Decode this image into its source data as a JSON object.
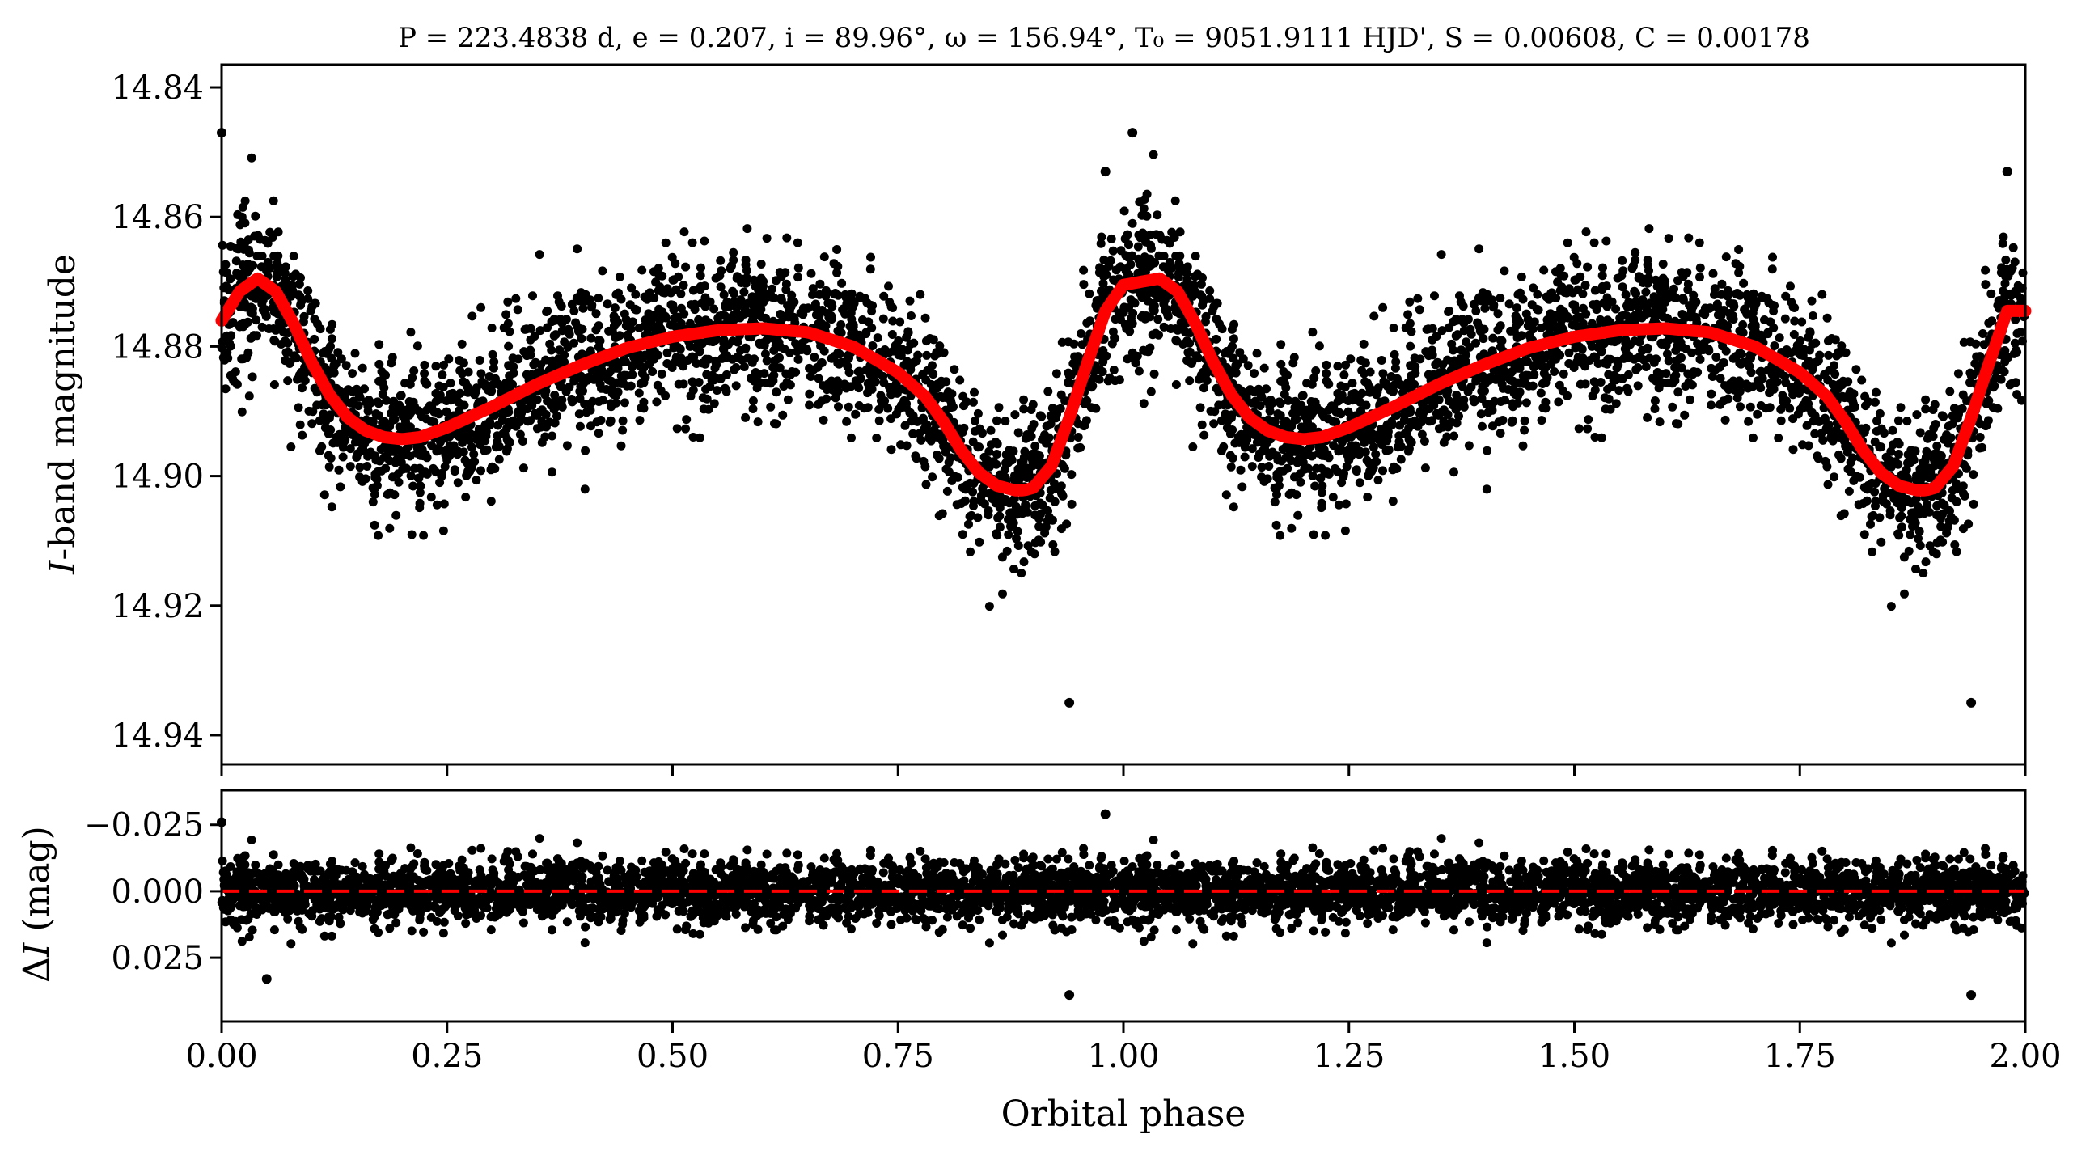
{
  "figure": {
    "title": "P = 223.4838 d, e = 0.207, i = 89.96°, ω = 156.94°, T₀ = 9051.9111 HJD', S = 0.00608, C = 0.00178"
  },
  "colors": {
    "points": "#000000",
    "model": "#ff0000",
    "zero_line": "#ff0000"
  },
  "chart_data": [
    {
      "type": "scatter",
      "panel": "top",
      "ylabel": "I-band magnitude",
      "ylabel_prefix": "I",
      "ylabel_suffix": "-band magnitude",
      "xlabel": "",
      "xlim": [
        0.0,
        2.0
      ],
      "ylim": [
        14.9445,
        14.8365
      ],
      "y_inverted": true,
      "yticks": [
        14.84,
        14.86,
        14.88,
        14.9,
        14.92,
        14.94
      ],
      "ytick_labels": [
        "14.84",
        "14.86",
        "14.88",
        "14.90",
        "14.92",
        "14.94"
      ],
      "grid": false,
      "series": [
        {
          "kind": "model-line",
          "x": [
            0.0,
            0.02,
            0.04,
            0.06,
            0.08,
            0.1,
            0.12,
            0.14,
            0.16,
            0.18,
            0.2,
            0.22,
            0.25,
            0.3,
            0.35,
            0.4,
            0.45,
            0.5,
            0.55,
            0.6,
            0.65,
            0.7,
            0.75,
            0.78,
            0.8,
            0.82,
            0.84,
            0.86,
            0.88,
            0.89,
            0.9,
            0.92,
            0.94,
            0.96,
            0.98,
            1.0,
            1.02,
            1.04,
            1.06,
            1.08,
            1.1,
            1.12,
            1.14,
            1.16,
            1.18,
            1.2,
            1.22,
            1.25,
            1.3,
            1.35,
            1.4,
            1.45,
            1.5,
            1.55,
            1.6,
            1.65,
            1.7,
            1.75,
            1.78,
            1.8,
            1.82,
            1.84,
            1.86,
            1.88,
            1.89,
            1.9,
            1.92,
            1.94,
            1.96,
            1.98,
            2.0
          ],
          "y": [
            14.876,
            14.8715,
            14.8695,
            14.8715,
            14.8765,
            14.8825,
            14.8875,
            14.891,
            14.893,
            14.894,
            14.8943,
            14.894,
            14.8925,
            14.8893,
            14.8858,
            14.8828,
            14.8802,
            14.8785,
            14.8775,
            14.8772,
            14.8778,
            14.88,
            14.884,
            14.8877,
            14.8915,
            14.896,
            14.8995,
            14.9015,
            14.9022,
            14.9022,
            14.9018,
            14.8985,
            14.891,
            14.8825,
            14.8745,
            14.8705,
            14.87,
            14.8695,
            14.8715,
            14.8765,
            14.8825,
            14.8875,
            14.891,
            14.893,
            14.894,
            14.8943,
            14.894,
            14.8925,
            14.8893,
            14.8858,
            14.8828,
            14.8802,
            14.8785,
            14.8775,
            14.8772,
            14.8778,
            14.88,
            14.884,
            14.8877,
            14.8915,
            14.896,
            14.8995,
            14.9015,
            14.9022,
            14.9022,
            14.9018,
            14.8985,
            14.891,
            14.8825,
            14.8745,
            14.8745
          ]
        },
        {
          "kind": "observations",
          "notable_points": [
            {
              "x": 0.94,
              "y": 14.935
            },
            {
              "x": 1.94,
              "y": 14.935
            },
            {
              "x": 0.0,
              "y": 14.847
            },
            {
              "x": 0.98,
              "y": 14.853
            },
            {
              "x": 1.98,
              "y": 14.853
            },
            {
              "x": 1.01,
              "y": 14.847
            }
          ]
        }
      ]
    },
    {
      "type": "scatter",
      "panel": "bottom",
      "ylabel": "ΔI (mag)",
      "ylabel_prefix": "Δ",
      "ylabel_italic": "I",
      "ylabel_suffix": " (mag)",
      "xlabel": "Orbital phase",
      "xlim": [
        0.0,
        2.0
      ],
      "ylim": [
        0.049,
        -0.038
      ],
      "y_inverted": true,
      "yticks": [
        -0.025,
        0.0,
        0.025
      ],
      "ytick_labels": [
        "−0.025",
        "0.000",
        "0.025"
      ],
      "xticks": [
        0.0,
        0.25,
        0.5,
        0.75,
        1.0,
        1.25,
        1.5,
        1.75,
        2.0
      ],
      "xtick_labels": [
        "0.00",
        "0.25",
        "0.50",
        "0.75",
        "1.00",
        "1.25",
        "1.50",
        "1.75",
        "2.00"
      ],
      "grid": false,
      "series": [
        {
          "kind": "zero-line",
          "y": 0.0
        },
        {
          "kind": "residuals",
          "notable_points": [
            {
              "x": 0.94,
              "y": 0.039
            },
            {
              "x": 1.94,
              "y": 0.039
            },
            {
              "x": 0.98,
              "y": -0.029
            },
            {
              "x": 0.0,
              "y": -0.026
            },
            {
              "x": 0.05,
              "y": 0.033
            }
          ]
        }
      ]
    }
  ]
}
